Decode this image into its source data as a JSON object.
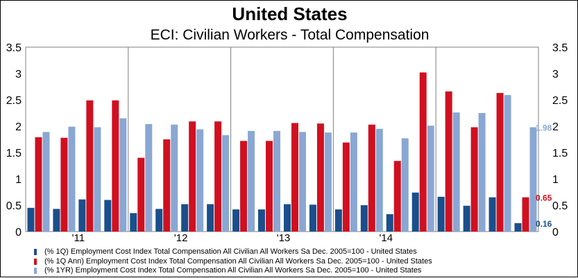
{
  "header": {
    "title": "United States",
    "subtitle": "ECI: Civilian Workers - Total Compensation"
  },
  "chart_data": {
    "type": "bar",
    "title": "United States",
    "subtitle": "ECI: Civilian Workers - Total Compensation",
    "ylim": [
      0,
      3.5
    ],
    "yticks": [
      "0",
      "0.5",
      "1",
      "1.5",
      "2",
      "2.5",
      "3",
      "3.5"
    ],
    "grid": false,
    "x_tick_labels": [
      {
        "label": "'11",
        "after_index": 3
      },
      {
        "label": "'12",
        "after_index": 7
      },
      {
        "label": "'13",
        "after_index": 11
      },
      {
        "label": "'14",
        "after_index": 15
      }
    ],
    "n_periods": 20,
    "series": [
      {
        "name": "(% 1Q) Employment Cost Index Total Compensation All Civilian All Workers Sa Dec. 2005=100 - United States",
        "color": "#1a4f8c",
        "values": [
          0.45,
          0.43,
          0.61,
          0.6,
          0.35,
          0.43,
          0.52,
          0.52,
          0.42,
          0.42,
          0.52,
          0.51,
          0.42,
          0.5,
          0.33,
          0.74,
          0.66,
          0.49,
          0.65,
          0.16
        ]
      },
      {
        "name": "(% 1Q Ann) Employment Cost Index Total Compensation All Civilian All Workers Sa Dec. 2005=100 - United States",
        "color": "#d01020",
        "values": [
          1.79,
          1.78,
          2.49,
          2.49,
          1.4,
          1.75,
          2.09,
          2.09,
          1.72,
          1.72,
          2.06,
          2.05,
          1.69,
          2.03,
          1.34,
          3.02,
          2.66,
          1.98,
          2.63,
          0.65
        ]
      },
      {
        "name": "(% 1YR) Employment Cost Index Total Compensation All Civilian All Workers Sa Dec. 2005=100 - United States",
        "color": "#8aa7d4",
        "values": [
          1.89,
          1.99,
          1.98,
          2.15,
          2.04,
          2.03,
          1.94,
          1.83,
          1.91,
          1.91,
          1.89,
          1.88,
          1.88,
          1.95,
          1.77,
          2.01,
          2.26,
          2.25,
          2.59,
          1.98
        ]
      }
    ],
    "data_labels": [
      {
        "text": "1.98",
        "series_index": 2
      },
      {
        "text": "0.65",
        "series_index": 1
      },
      {
        "text": "0.16",
        "series_index": 0
      }
    ]
  }
}
